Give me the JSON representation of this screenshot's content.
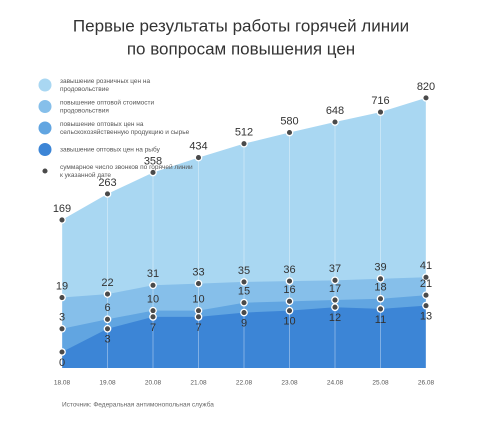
{
  "chart_data": {
    "type": "area",
    "title": "Первые результаты работы горячей линии",
    "subtitle": "по вопросам повышения цен",
    "categories": [
      "18.08",
      "19.08",
      "20.08",
      "21.08",
      "22.08",
      "23.08",
      "24.08",
      "25.08",
      "26.08"
    ],
    "background_area": {
      "name": "завышение розничных цен на продовольствие",
      "color": "#a9d7f2"
    },
    "series": [
      {
        "name": "повышение оптовой стоимости продовольствия",
        "color": "#86bfea",
        "values": [
          19,
          22,
          31,
          33,
          35,
          36,
          37,
          39,
          41
        ]
      },
      {
        "name": "повышение оптовых цен на сельскохозяйственную продукцию и сырье",
        "color": "#61a5e1",
        "values": [
          3,
          6,
          10,
          10,
          15,
          16,
          17,
          18,
          21
        ]
      },
      {
        "name": "завышение оптовых цен на рыбу",
        "color": "#3c85d6",
        "values": [
          0,
          3,
          7,
          7,
          9,
          10,
          12,
          11,
          13
        ]
      }
    ],
    "total": {
      "name": "суммарное число звонков по горячей линии к указанной дате",
      "color": "#4a4a4a",
      "values": [
        169,
        263,
        358,
        434,
        512,
        580,
        648,
        716,
        820
      ]
    },
    "source": "Источник:  Федеральная антимонопольная служба"
  }
}
